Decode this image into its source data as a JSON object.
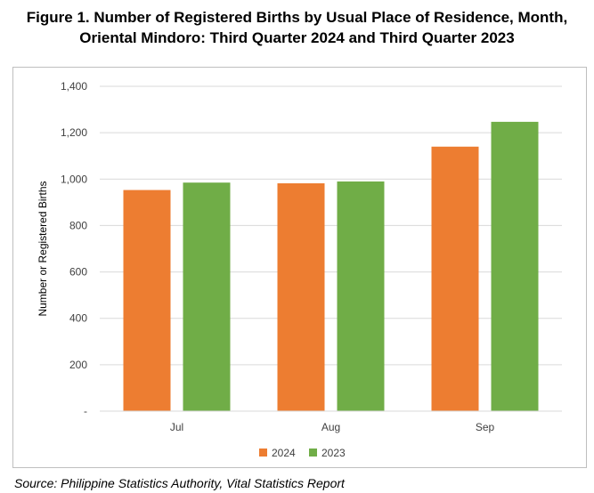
{
  "figure": {
    "title_line1": "Figure 1. Number of Registered Births by Usual Place of Residence, Month,",
    "title_line2": "Oriental Mindoro: Third Quarter 2024 and Third Quarter 2023",
    "source": "Source: Philippine Statistics Authority, Vital Statistics Report"
  },
  "chart_data": {
    "type": "bar",
    "categories": [
      "Jul",
      "Aug",
      "Sep"
    ],
    "series": [
      {
        "name": "2024",
        "values": [
          953,
          982,
          1140
        ],
        "color": "#ED7D31"
      },
      {
        "name": "2023",
        "values": [
          985,
          990,
          1247
        ],
        "color": "#70AD47"
      }
    ],
    "ylabel": "Number or Registered Births",
    "xlabel": "",
    "ylim": [
      0,
      1400
    ],
    "yticks": [
      {
        "value": 0,
        "label": "-"
      },
      {
        "value": 200,
        "label": "200"
      },
      {
        "value": 400,
        "label": "400"
      },
      {
        "value": 600,
        "label": "600"
      },
      {
        "value": 800,
        "label": "800"
      },
      {
        "value": 1000,
        "label": "1,000"
      },
      {
        "value": 1200,
        "label": "1,200"
      },
      {
        "value": 1400,
        "label": "1,400"
      }
    ],
    "grid": true,
    "legend": "bottom-center"
  }
}
